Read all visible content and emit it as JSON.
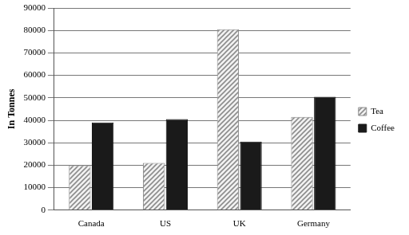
{
  "chart_data": {
    "type": "bar",
    "y_label": "In Tonnes",
    "categories": [
      "Canada",
      "US",
      "UK",
      "Germany"
    ],
    "series": [
      {
        "name": "Tea",
        "color": "#8c8c8c",
        "values": [
          20000,
          21000,
          80500,
          41500
        ]
      },
      {
        "name": "Coffee",
        "color": "#1a1a1a",
        "values": [
          39000,
          40500,
          30500,
          50500
        ]
      }
    ],
    "ylim": [
      0,
      90000
    ],
    "yticks": [
      0,
      10000,
      20000,
      30000,
      40000,
      50000,
      60000,
      70000,
      80000,
      90000
    ],
    "grid": true,
    "legend": "right"
  }
}
